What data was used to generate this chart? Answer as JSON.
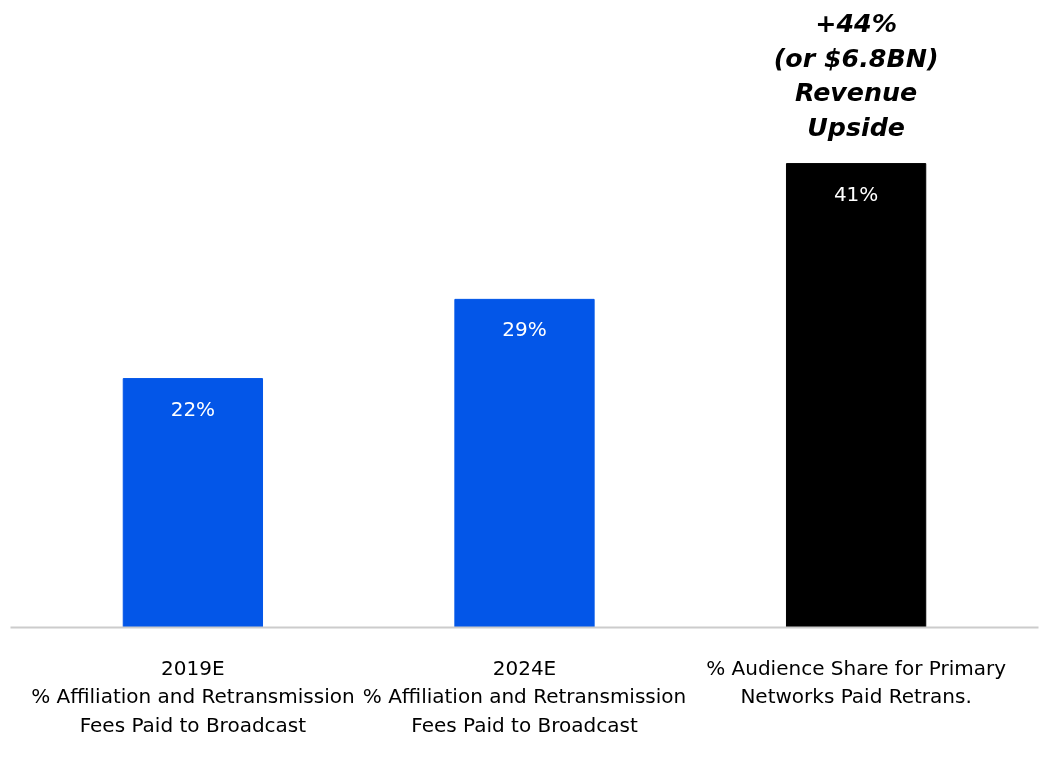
{
  "chart_data": {
    "type": "bar",
    "categories": [
      "2019E\n% Affiliation and Retransmission\nFees Paid to Broadcast",
      "2024E\n% Affiliation and Retransmission\nFees Paid to Broadcast",
      "% Audience Share for Primary\nNetworks Paid Retrans."
    ],
    "values": [
      22,
      29,
      41
    ],
    "colors": [
      "#0356e8",
      "#0356e8",
      "#000000"
    ],
    "value_labels": [
      "22%",
      "29%",
      "41%"
    ],
    "annotations": [
      "+44%\n(or $6.8BN)\nRevenue\nUpside"
    ],
    "grid": false
  }
}
